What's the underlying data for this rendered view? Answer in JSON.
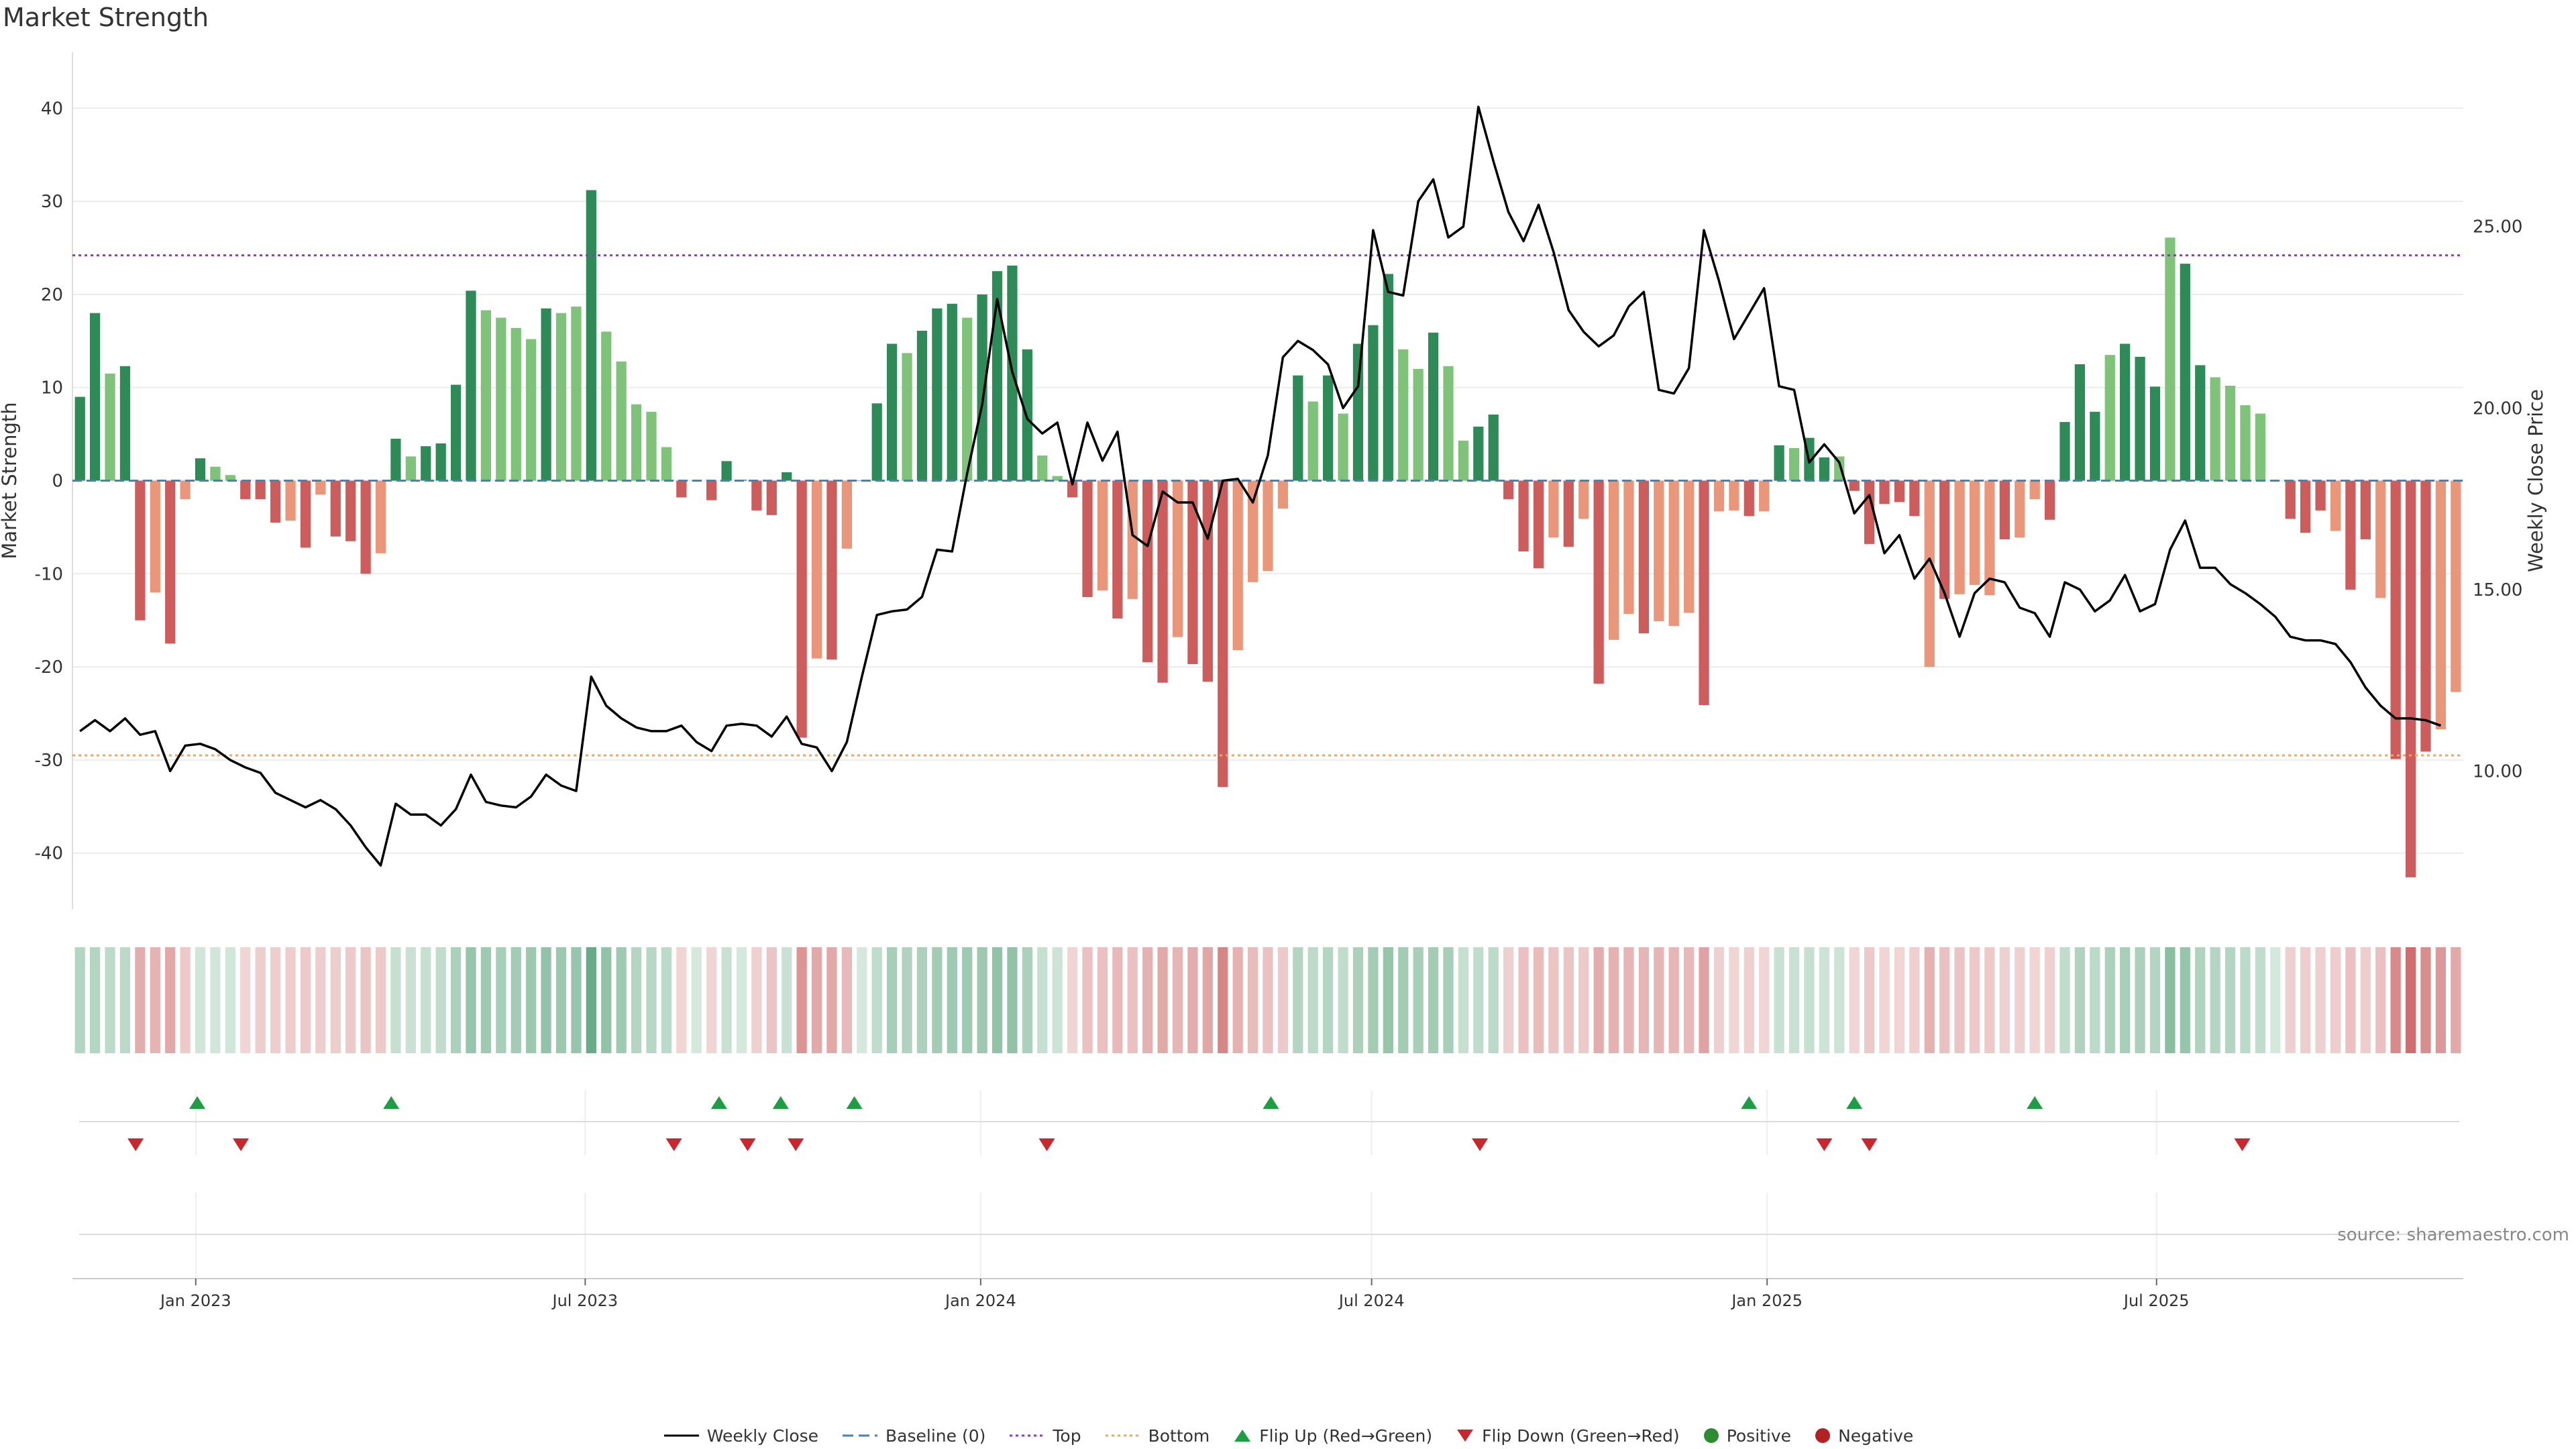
{
  "chart_data": {
    "type": "bar",
    "title": "Market Strength",
    "ylabel": "Market Strength",
    "y2label": "Weekly Close Price",
    "ylim": [
      -46,
      46
    ],
    "y2lim": [
      6.2,
      29.8
    ],
    "yticks": [
      40,
      30,
      20,
      10,
      0,
      -10,
      -20,
      -30,
      -40
    ],
    "y2ticks": [
      "25.00",
      "20.00",
      "15.00",
      "10.00"
    ],
    "y2tick_values": [
      25,
      20,
      15,
      10
    ],
    "x_tick_labels": [
      "Jan 2023",
      "Jul 2023",
      "Jan 2024",
      "Jul 2024",
      "Jan 2025",
      "Jul 2025"
    ],
    "x_tick_weeks": [
      8.2,
      34.1,
      60.4,
      86.4,
      112.7,
      138.6
    ],
    "top_threshold": 24.2,
    "bottom_threshold": -29.5,
    "strength": [
      9,
      18,
      11.5,
      12.3,
      -15,
      -12,
      -17.5,
      -2,
      2.4,
      1.5,
      0.6,
      -2,
      -2,
      -4.5,
      -4.3,
      -7.2,
      -1.5,
      -6,
      -6.5,
      -10,
      -7.8,
      4.5,
      2.6,
      3.7,
      4,
      10.3,
      20.4,
      18.3,
      17.5,
      16.4,
      15.2,
      18.5,
      18,
      18.7,
      31.2,
      16,
      12.8,
      8.2,
      7.4,
      3.6,
      -1.8,
      0,
      -2.1,
      2.1,
      0.1,
      -3.2,
      -3.7,
      0.9,
      -27.6,
      -19.1,
      -19.2,
      -7.3,
      0,
      8.3,
      14.7,
      13.7,
      16.1,
      18.5,
      19,
      17.5,
      20,
      22.5,
      23.1,
      14.1,
      2.7,
      0.5,
      -1.8,
      -12.5,
      -11.8,
      -14.8,
      -12.7,
      -19.5,
      -21.7,
      -16.8,
      -19.7,
      -21.6,
      -32.9,
      -18.2,
      -10.9,
      -9.7,
      -3,
      11.3,
      8.5,
      11.3,
      7.2,
      14.7,
      16.7,
      22.2,
      14.1,
      12,
      15.9,
      12.3,
      4.3,
      5.8,
      7.1,
      -2,
      -7.6,
      -9.4,
      -6.1,
      -7.1,
      -4.1,
      -21.8,
      -17.1,
      -14.3,
      -16.4,
      -15.1,
      -15.6,
      -14.2,
      -24.1,
      -3.3,
      -3.2,
      -3.8,
      -3.3,
      3.8,
      3.5,
      4.6,
      2.5,
      2.6,
      -1.1,
      -6.8,
      -2.5,
      -2.3,
      -3.8,
      -20,
      -12.7,
      -12.2,
      -11.2,
      -12.3,
      -6.3,
      -6.1,
      -2,
      -4.2,
      6.3,
      12.5,
      7.4,
      13.5,
      14.7,
      13.3,
      10.1,
      26.1,
      23.3,
      12.4,
      11.1,
      10.2,
      8.1,
      7.2,
      0,
      -4.1,
      -5.6,
      -3.2,
      -5.4,
      -11.7,
      -6.3,
      -12.6,
      -29.9,
      -42.6,
      -29.1,
      -26.7,
      -22.7
    ],
    "shade": [
      "d",
      "d",
      "l",
      "d",
      "d",
      "l",
      "d",
      "l",
      "d",
      "l",
      "l",
      "d",
      "d",
      "d",
      "l",
      "d",
      "l",
      "d",
      "d",
      "d",
      "l",
      "d",
      "l",
      "d",
      "d",
      "d",
      "d",
      "l",
      "l",
      "l",
      "l",
      "d",
      "l",
      "l",
      "d",
      "l",
      "l",
      "l",
      "l",
      "l",
      "d",
      "d",
      "d",
      "d",
      "d",
      "d",
      "d",
      "d",
      "d",
      "l",
      "d",
      "l",
      "d",
      "d",
      "d",
      "l",
      "d",
      "d",
      "d",
      "l",
      "d",
      "d",
      "d",
      "d",
      "l",
      "l",
      "d",
      "d",
      "l",
      "d",
      "l",
      "d",
      "d",
      "l",
      "d",
      "d",
      "d",
      "l",
      "l",
      "l",
      "l",
      "d",
      "l",
      "d",
      "l",
      "d",
      "d",
      "d",
      "l",
      "l",
      "d",
      "l",
      "l",
      "d",
      "d",
      "d",
      "d",
      "d",
      "l",
      "d",
      "l",
      "d",
      "l",
      "l",
      "d",
      "l",
      "l",
      "l",
      "d",
      "l",
      "l",
      "d",
      "l",
      "d",
      "l",
      "d",
      "d",
      "l",
      "d",
      "d",
      "d",
      "d",
      "d",
      "l",
      "d",
      "l",
      "l",
      "l",
      "d",
      "l",
      "l",
      "d",
      "d",
      "d",
      "d",
      "l",
      "d",
      "d",
      "d",
      "l",
      "d",
      "d",
      "l",
      "l",
      "l",
      "l",
      "l",
      "d",
      "d",
      "d",
      "l",
      "d",
      "d",
      "l",
      "d",
      "d",
      "d",
      "l",
      "l",
      "l"
    ],
    "weekly_close": [
      11.1,
      11.4,
      11.1,
      11.45,
      11,
      11.1,
      10,
      10.7,
      10.75,
      10.6,
      10.3,
      10.1,
      9.95,
      9.4,
      9.2,
      9.0,
      9.2,
      8.95,
      8.5,
      7.9,
      7.4,
      9.1,
      8.8,
      8.8,
      8.5,
      8.95,
      9.9,
      9.15,
      9.05,
      9.0,
      9.3,
      9.9,
      9.6,
      9.45,
      12.6,
      11.8,
      11.45,
      11.2,
      11.1,
      11.1,
      11.25,
      10.8,
      10.55,
      11.25,
      11.3,
      11.25,
      10.95,
      11.5,
      10.75,
      10.65,
      10.0,
      10.8,
      12.6,
      14.3,
      14.4,
      14.45,
      14.8,
      16.1,
      16.05,
      18.2,
      20.1,
      23.0,
      21.0,
      19.7,
      19.3,
      19.6,
      17.9,
      19.6,
      18.55,
      19.35,
      16.5,
      16.2,
      17.7,
      17.4,
      17.4,
      16.4,
      18.0,
      18.05,
      17.4,
      18.7,
      21.4,
      21.85,
      21.6,
      21.2,
      20.0,
      20.6,
      24.9,
      23.2,
      23.1,
      25.7,
      26.3,
      24.7,
      25.0,
      28.3,
      26.8,
      25.4,
      24.6,
      25.6,
      24.3,
      22.7,
      22.1,
      21.7,
      22.0,
      22.8,
      23.2,
      20.5,
      20.4,
      21.1,
      24.9,
      23.5,
      21.9,
      22.6,
      23.3,
      20.6,
      20.5,
      18.5,
      19.0,
      18.5,
      17.1,
      17.6,
      16.0,
      16.5,
      15.3,
      15.85,
      14.9,
      13.7,
      14.9,
      15.3,
      15.2,
      14.5,
      14.35,
      13.7,
      15.2,
      15.0,
      14.4,
      14.7,
      15.4,
      14.4,
      14.6,
      16.1,
      16.9,
      15.6,
      15.6,
      15.15,
      14.9,
      14.6,
      14.25,
      13.7,
      13.6,
      13.6,
      13.5,
      13.0,
      12.3,
      11.8,
      11.45,
      11.45,
      11.4,
      11.25
    ],
    "heat": [
      0.36,
      0.36,
      0.32,
      0.33,
      0.42,
      0.39,
      0.45,
      0.28,
      0.22,
      0.22,
      0.22,
      0.22,
      0.26,
      0.26,
      0.26,
      0.28,
      0.26,
      0.26,
      0.28,
      0.3,
      0.28,
      0.28,
      0.26,
      0.28,
      0.3,
      0.4,
      0.5,
      0.46,
      0.42,
      0.44,
      0.48,
      0.52,
      0.48,
      0.5,
      0.72,
      0.52,
      0.46,
      0.36,
      0.34,
      0.32,
      0.22,
      0.2,
      0.22,
      0.26,
      0.2,
      0.24,
      0.3,
      0.26,
      0.54,
      0.44,
      0.44,
      0.36,
      0.2,
      0.3,
      0.42,
      0.38,
      0.4,
      0.44,
      0.46,
      0.46,
      0.48,
      0.52,
      0.52,
      0.4,
      0.28,
      0.24,
      0.22,
      0.32,
      0.32,
      0.36,
      0.32,
      0.4,
      0.44,
      0.38,
      0.42,
      0.46,
      0.62,
      0.4,
      0.34,
      0.32,
      0.28,
      0.36,
      0.32,
      0.36,
      0.3,
      0.4,
      0.44,
      0.5,
      0.44,
      0.42,
      0.44,
      0.42,
      0.28,
      0.3,
      0.32,
      0.24,
      0.32,
      0.34,
      0.3,
      0.3,
      0.28,
      0.42,
      0.4,
      0.38,
      0.38,
      0.38,
      0.38,
      0.36,
      0.48,
      0.24,
      0.22,
      0.24,
      0.22,
      0.26,
      0.26,
      0.28,
      0.24,
      0.24,
      0.22,
      0.28,
      0.22,
      0.22,
      0.24,
      0.4,
      0.32,
      0.3,
      0.28,
      0.28,
      0.24,
      0.24,
      0.22,
      0.24,
      0.3,
      0.38,
      0.32,
      0.4,
      0.42,
      0.4,
      0.36,
      0.56,
      0.5,
      0.38,
      0.36,
      0.36,
      0.32,
      0.3,
      0.2,
      0.24,
      0.26,
      0.24,
      0.26,
      0.32,
      0.26,
      0.32,
      0.6,
      0.74,
      0.58,
      0.52,
      0.44
    ],
    "flip_up_weeks": [
      8.3,
      21.2,
      43.0,
      47.1,
      52.0,
      79.7,
      111.5,
      118.5,
      130.5
    ],
    "flip_down_weeks": [
      4.2,
      11.2,
      40.0,
      44.9,
      48.1,
      64.8,
      93.6,
      116.5,
      119.5,
      144.3
    ],
    "legend": [
      "Weekly Close",
      "Baseline (0)",
      "Top",
      "Bottom",
      "Flip Up (Red→Green)",
      "Flip Down (Green→Red)",
      "Positive",
      "Negative"
    ],
    "source": "source: sharemaestro.com",
    "colors": {
      "pos_dark": "#2e8b57",
      "pos_light": "#7fc27a",
      "neg_dark": "#cd5c5c",
      "neg_light": "#e9967a",
      "line": "#000000",
      "top": "#9932cc",
      "bottom": "#f4a460",
      "baseline": "#4682b4",
      "flip_up": "#1f9d45",
      "flip_down": "#c8272d",
      "dot_pos": "#2e8b2e",
      "dot_neg": "#b22222"
    }
  }
}
